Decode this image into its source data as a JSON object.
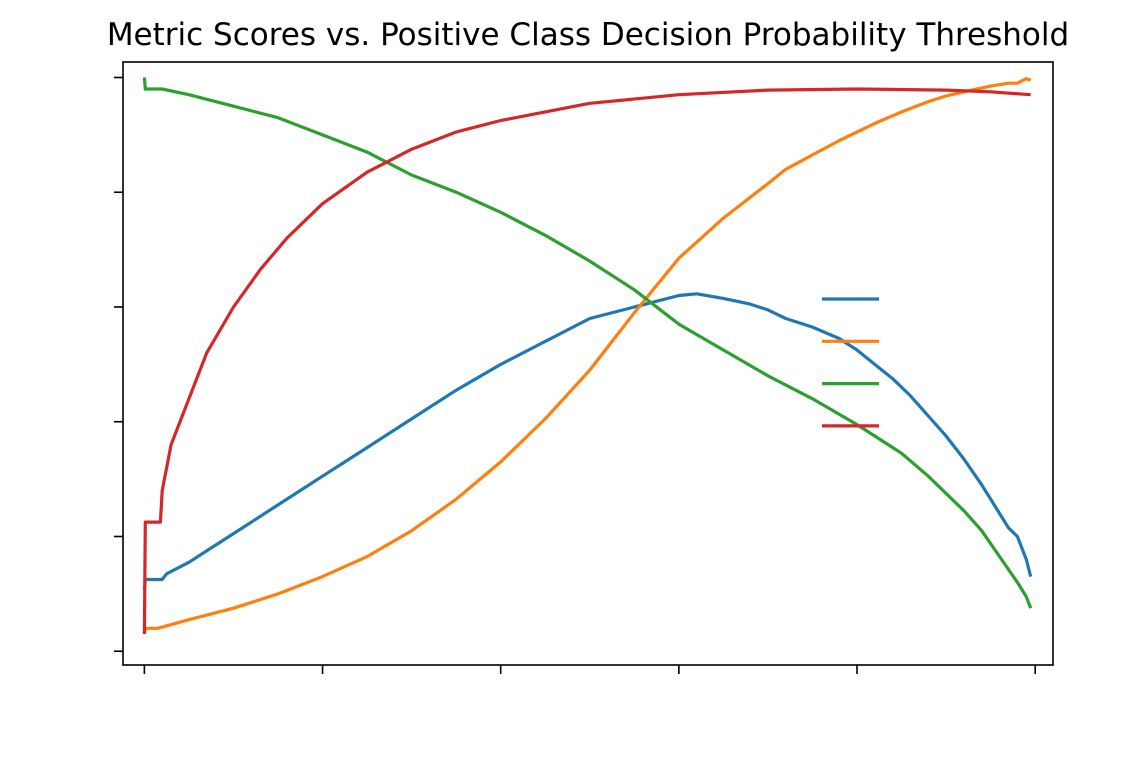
{
  "chart_data": {
    "type": "line",
    "title": "Metric Scores vs. Positive Class Decision Probability Threshold",
    "xlabel": "",
    "ylabel": "",
    "xlim": [
      -0.024,
      1.02
    ],
    "ylim": [
      -0.024,
      1.027
    ],
    "x_ticks": [
      0,
      0.2,
      0.4,
      0.6,
      0.8,
      1.0
    ],
    "y_ticks": [
      0,
      0.2,
      0.4,
      0.6,
      0.8,
      1.0
    ],
    "grid": false,
    "legend_position": "center-right",
    "series": [
      {
        "color": "#1f77b4",
        "x": [
          0,
          0.001,
          0.02,
          0.025,
          0.05,
          0.08,
          0.1,
          0.15,
          0.2,
          0.25,
          0.3,
          0.35,
          0.4,
          0.45,
          0.5,
          0.55,
          0.6,
          0.62,
          0.65,
          0.68,
          0.7,
          0.72,
          0.75,
          0.78,
          0.8,
          0.82,
          0.84,
          0.86,
          0.88,
          0.9,
          0.92,
          0.94,
          0.96,
          0.97,
          0.98,
          0.99,
          0.995
        ],
        "y": [
          0.108,
          0.125,
          0.125,
          0.135,
          0.155,
          0.185,
          0.205,
          0.255,
          0.305,
          0.355,
          0.405,
          0.455,
          0.5,
          0.54,
          0.58,
          0.6,
          0.62,
          0.623,
          0.615,
          0.605,
          0.595,
          0.58,
          0.565,
          0.545,
          0.525,
          0.5,
          0.475,
          0.445,
          0.41,
          0.375,
          0.335,
          0.29,
          0.24,
          0.215,
          0.2,
          0.16,
          0.13
        ]
      },
      {
        "color": "#ff7f0e",
        "x": [
          0,
          0.001,
          0.015,
          0.05,
          0.1,
          0.15,
          0.2,
          0.25,
          0.3,
          0.35,
          0.4,
          0.45,
          0.5,
          0.55,
          0.6,
          0.65,
          0.7,
          0.72,
          0.75,
          0.78,
          0.8,
          0.82,
          0.85,
          0.88,
          0.9,
          0.92,
          0.95,
          0.97,
          0.98,
          0.99,
          0.995
        ],
        "y": [
          0.03,
          0.04,
          0.04,
          0.055,
          0.075,
          0.1,
          0.13,
          0.165,
          0.21,
          0.265,
          0.33,
          0.405,
          0.49,
          0.59,
          0.685,
          0.755,
          0.815,
          0.84,
          0.865,
          0.89,
          0.905,
          0.92,
          0.94,
          0.958,
          0.968,
          0.975,
          0.985,
          0.99,
          0.99,
          0.998,
          0.995
        ]
      },
      {
        "color": "#2ca02c",
        "x": [
          0,
          0.001,
          0.02,
          0.05,
          0.1,
          0.15,
          0.2,
          0.25,
          0.3,
          0.35,
          0.4,
          0.45,
          0.5,
          0.55,
          0.6,
          0.65,
          0.7,
          0.75,
          0.8,
          0.85,
          0.88,
          0.9,
          0.92,
          0.94,
          0.96,
          0.98,
          0.99,
          0.995
        ],
        "y": [
          1.0,
          0.98,
          0.98,
          0.97,
          0.95,
          0.93,
          0.9,
          0.87,
          0.83,
          0.8,
          0.765,
          0.725,
          0.68,
          0.63,
          0.57,
          0.525,
          0.48,
          0.44,
          0.395,
          0.345,
          0.305,
          0.275,
          0.245,
          0.21,
          0.165,
          0.12,
          0.095,
          0.075
        ]
      },
      {
        "color": "#d62728",
        "x": [
          0,
          0.001,
          0.018,
          0.02,
          0.03,
          0.05,
          0.07,
          0.1,
          0.13,
          0.16,
          0.2,
          0.25,
          0.3,
          0.35,
          0.4,
          0.45,
          0.5,
          0.6,
          0.7,
          0.8,
          0.9,
          0.95,
          0.995
        ],
        "y": [
          0.03,
          0.225,
          0.225,
          0.28,
          0.36,
          0.44,
          0.52,
          0.6,
          0.665,
          0.72,
          0.78,
          0.835,
          0.875,
          0.905,
          0.925,
          0.94,
          0.955,
          0.97,
          0.978,
          0.98,
          0.978,
          0.975,
          0.97
        ]
      }
    ]
  }
}
